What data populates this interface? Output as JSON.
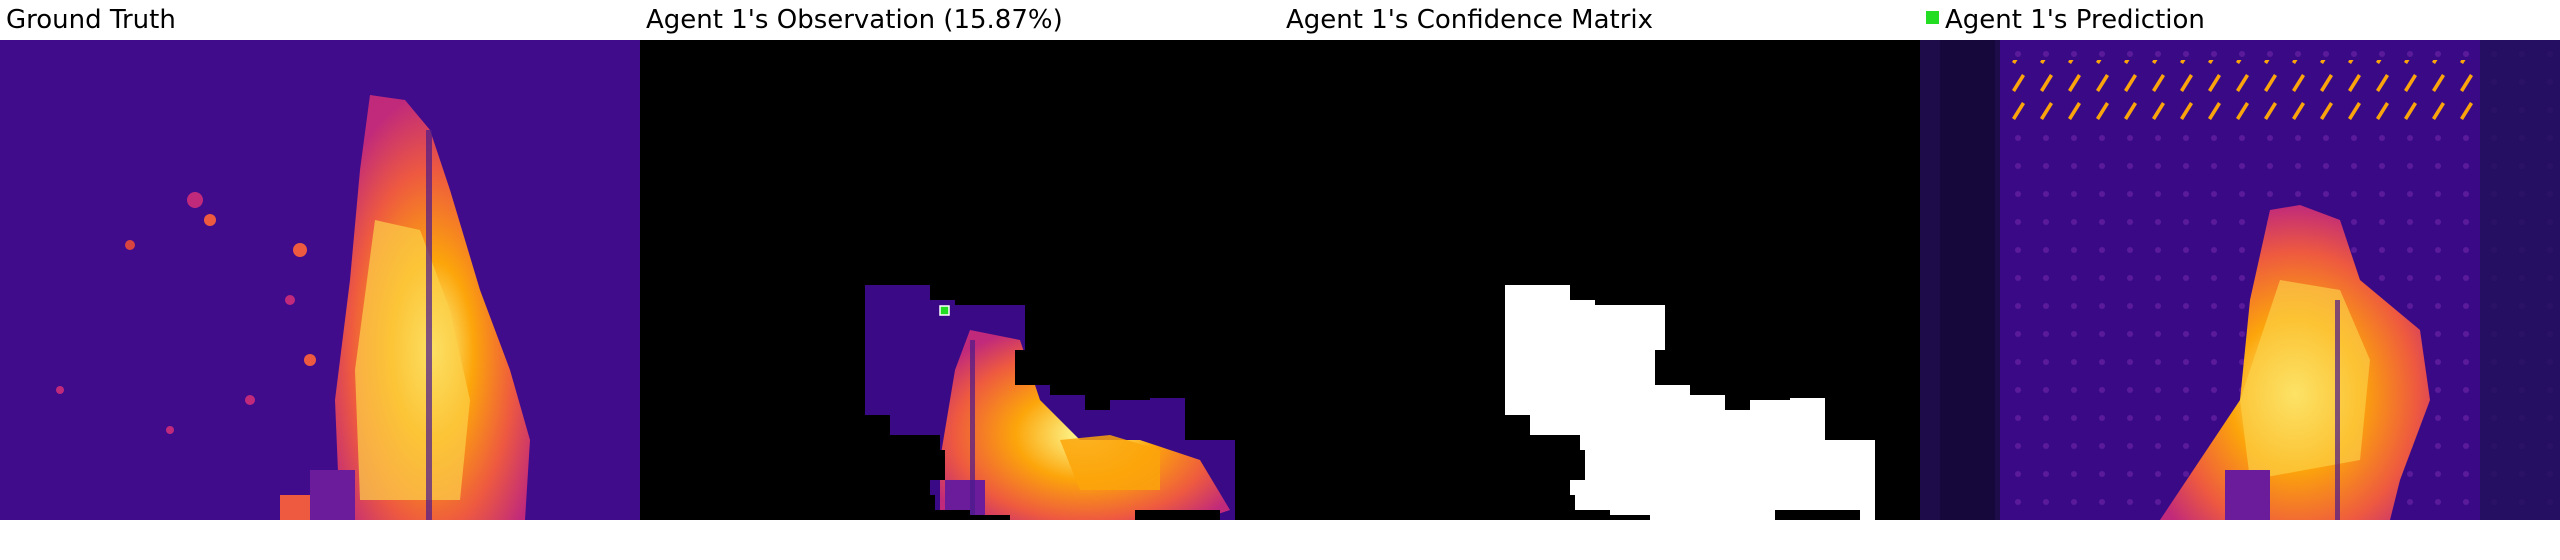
{
  "panels": [
    {
      "title": "Ground Truth"
    },
    {
      "title": "Agent 1's Observation (15.87%)"
    },
    {
      "title": "Agent 1's Confidence Matrix"
    },
    {
      "title": "Agent 1's Prediction"
    }
  ],
  "colors": {
    "agent_marker": "#22dd22",
    "colormap": [
      "#12063a",
      "#3b0c8c",
      "#7a109c",
      "#c12a7a",
      "#ee5a3f",
      "#fca50a",
      "#fcff9c"
    ]
  }
}
